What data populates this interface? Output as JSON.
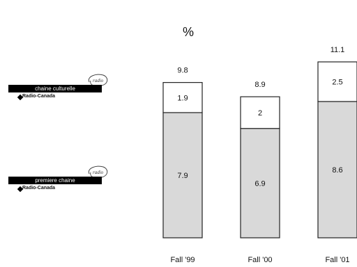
{
  "chart_data": {
    "type": "bar",
    "stacked": true,
    "unit_label": "%",
    "categories": [
      "Fall '99",
      "Fall '00",
      "Fall '01"
    ],
    "series": [
      {
        "values": [
          7.9,
          6.9,
          8.6
        ],
        "color": "#d9d9d9"
      },
      {
        "values": [
          1.9,
          2,
          2.5
        ],
        "color": "#ffffff"
      }
    ],
    "totals": [
      "9.8",
      "8.9",
      "11.1"
    ],
    "segment_labels": [
      [
        "7.9",
        "1.9"
      ],
      [
        "6.9",
        "2"
      ],
      [
        "8.6",
        "2.5"
      ]
    ],
    "ylim": [
      0,
      11.1
    ],
    "grid": false,
    "legend": [
      {
        "label": "chaine culturelle",
        "sub": "Radio-Canada",
        "badge": "radio",
        "color": "#ffffff"
      },
      {
        "label": "premiere chaine",
        "sub": "Radio-Canada",
        "badge": "radio",
        "color": "#d9d9d9"
      }
    ]
  }
}
